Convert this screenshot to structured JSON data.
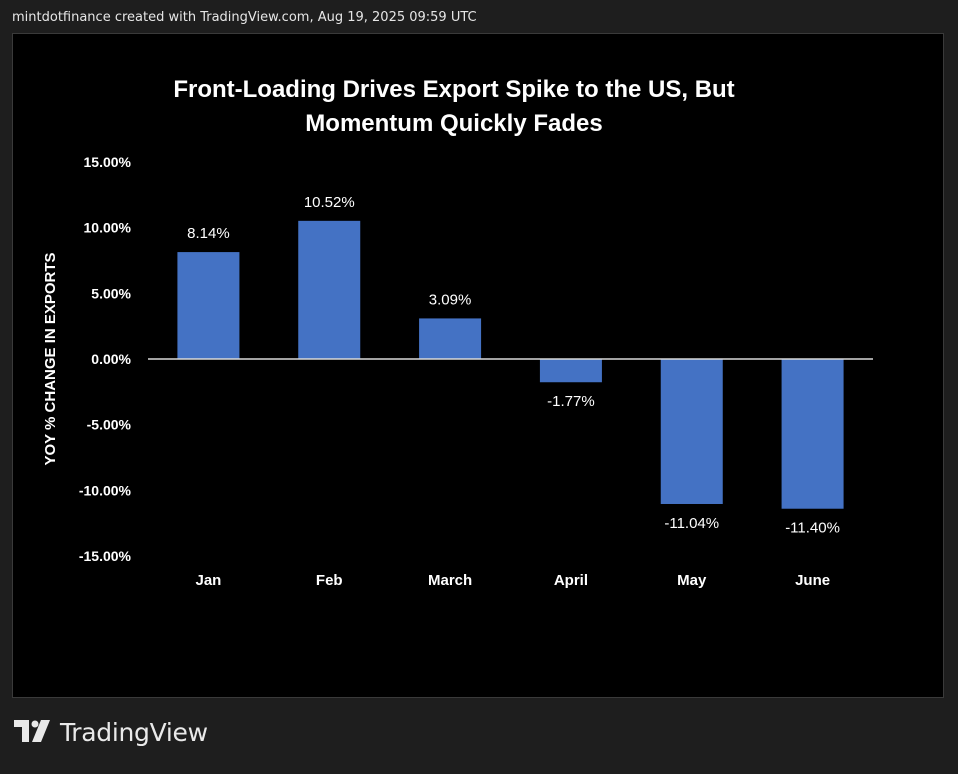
{
  "header": {
    "caption": "mintdotfinance created with TradingView.com, Aug 19, 2025 09:59 UTC"
  },
  "footer": {
    "brand": "TradingView",
    "logo_icon": "tradingview-logo-icon"
  },
  "colors": {
    "background": "#1e1e1e",
    "plot_background": "#000000",
    "bar": "#4472c4",
    "text": "#ffffff",
    "zero_line": "#d9d9d9"
  },
  "chart_data": {
    "type": "bar",
    "title_lines": [
      "Front-Loading Drives Export Spike to the US, But",
      "Momentum Quickly Fades"
    ],
    "xlabel": "",
    "ylabel": "YOY % CHANGE IN EXPORTS",
    "categories": [
      "Jan",
      "Feb",
      "March",
      "April",
      "May",
      "June"
    ],
    "values": [
      8.14,
      10.52,
      3.09,
      -1.77,
      -11.04,
      -11.4
    ],
    "value_labels": [
      "8.14%",
      "10.52%",
      "3.09%",
      "-1.77%",
      "-11.04%",
      "-11.40%"
    ],
    "ylim": [
      -15,
      15
    ],
    "yticks": [
      15,
      10,
      5,
      0,
      -5,
      -10,
      -15
    ],
    "ytick_labels": [
      "15.00%",
      "10.00%",
      "5.00%",
      "0.00%",
      "-5.00%",
      "-10.00%",
      "-15.00%"
    ],
    "grid": false,
    "legend": "none"
  }
}
